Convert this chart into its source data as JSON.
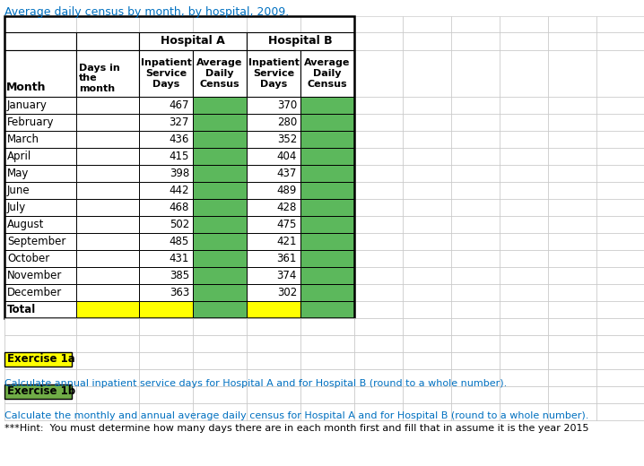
{
  "title": "Average daily census by month, by hospital, 2009.",
  "months": [
    "January",
    "February",
    "March",
    "April",
    "May",
    "June",
    "July",
    "August",
    "September",
    "October",
    "November",
    "December",
    "Total"
  ],
  "hosp_a_isd": [
    467,
    327,
    436,
    415,
    398,
    442,
    468,
    502,
    485,
    431,
    385,
    363,
    ""
  ],
  "hosp_b_isd": [
    370,
    280,
    352,
    404,
    437,
    489,
    428,
    475,
    421,
    361,
    374,
    302,
    ""
  ],
  "col_headers_row1": [
    "",
    "Days in\nthe\nmonth",
    "Inpatient\nService\nDays",
    "Average\nDaily\nCensus",
    "Inpatient\nService\nDays",
    "Average\nDaily\nCensus"
  ],
  "hospital_a_label": "Hospital A",
  "hospital_b_label": "Hospital B",
  "green_color": "#5cb85c",
  "yellow_color": "#ffff00",
  "text_blue": "#0070c0",
  "exercise_1a_bg": "#ffff00",
  "exercise_1b_bg": "#70ad47",
  "exercise_1a_text": "Exercise 1a",
  "exercise_1b_text": "Exercise 1b",
  "note1": "Calculate annual inpatient service days for Hospital A and for Hospital B (round to a whole number).",
  "note2": "Calculate the monthly and annual average daily census for Hospital A and for Hospital B (round to a whole number).",
  "note3": "***Hint:  You must determine how many days there are in each month first and fill that in assume it is the year 2015",
  "grid_color": "#c0c0c0",
  "grid_lw": 0.4,
  "table_border_lw": 1.5
}
